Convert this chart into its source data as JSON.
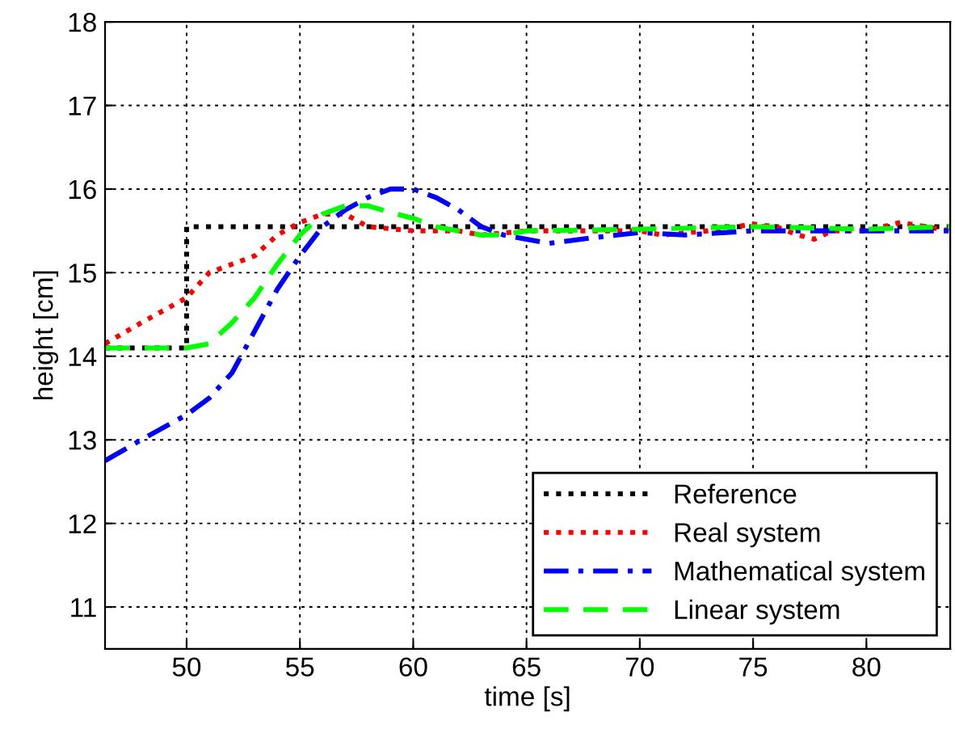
{
  "chart_data": {
    "type": "line",
    "xlabel": "time [s]",
    "ylabel": "height [cm]",
    "xlim": [
      46.4,
      83.7
    ],
    "ylim": [
      10.5,
      18
    ],
    "xticks": [
      50,
      55,
      60,
      65,
      70,
      75,
      80
    ],
    "yticks": [
      11,
      12,
      13,
      14,
      15,
      16,
      17,
      18
    ],
    "grid": true,
    "legend": "bottom right",
    "marker": "none",
    "series": [
      {
        "name": "Reference",
        "color": "#000000",
        "line_style": "dotted",
        "x": [
          46.4,
          50,
          50,
          83.7
        ],
        "values": [
          14.1,
          14.1,
          15.55,
          15.55
        ]
      },
      {
        "name": "Real system",
        "color": "#ff0000",
        "line_style": "dotted",
        "x": [
          46.4,
          48,
          50,
          51,
          52,
          53,
          54,
          55,
          56,
          57,
          58,
          60,
          62,
          63,
          65,
          67,
          70,
          71,
          73,
          75,
          76,
          77,
          77.7,
          78.5,
          80,
          81.5,
          83.7
        ],
        "values": [
          14.15,
          14.4,
          14.7,
          15.0,
          15.1,
          15.2,
          15.45,
          15.6,
          15.7,
          15.7,
          15.55,
          15.5,
          15.5,
          15.45,
          15.5,
          15.5,
          15.5,
          15.45,
          15.5,
          15.58,
          15.55,
          15.45,
          15.4,
          15.5,
          15.5,
          15.6,
          15.5
        ]
      },
      {
        "name": "Mathematical system",
        "color": "#0000ff",
        "line_style": "dashdot",
        "x": [
          46.4,
          48,
          50,
          51,
          52,
          53,
          54,
          55,
          56,
          57,
          58,
          59,
          60,
          61,
          62,
          63,
          64,
          65,
          66,
          68,
          70,
          72,
          75,
          80,
          83.7
        ],
        "values": [
          12.75,
          13.0,
          13.3,
          13.5,
          13.8,
          14.3,
          14.8,
          15.2,
          15.55,
          15.75,
          15.9,
          16.0,
          16.0,
          15.9,
          15.75,
          15.55,
          15.45,
          15.4,
          15.35,
          15.42,
          15.48,
          15.45,
          15.5,
          15.5,
          15.5
        ]
      },
      {
        "name": "Linear system",
        "color": "#00ff00",
        "line_style": "dashed",
        "x": [
          46.4,
          50,
          51,
          52,
          53,
          54,
          55,
          56,
          57,
          58,
          59,
          60,
          61,
          62,
          63,
          64,
          65,
          70,
          75,
          80,
          83.7
        ],
        "values": [
          14.1,
          14.1,
          14.15,
          14.4,
          14.7,
          15.1,
          15.45,
          15.7,
          15.8,
          15.8,
          15.72,
          15.65,
          15.55,
          15.5,
          15.45,
          15.45,
          15.5,
          15.52,
          15.55,
          15.52,
          15.55
        ]
      }
    ]
  }
}
